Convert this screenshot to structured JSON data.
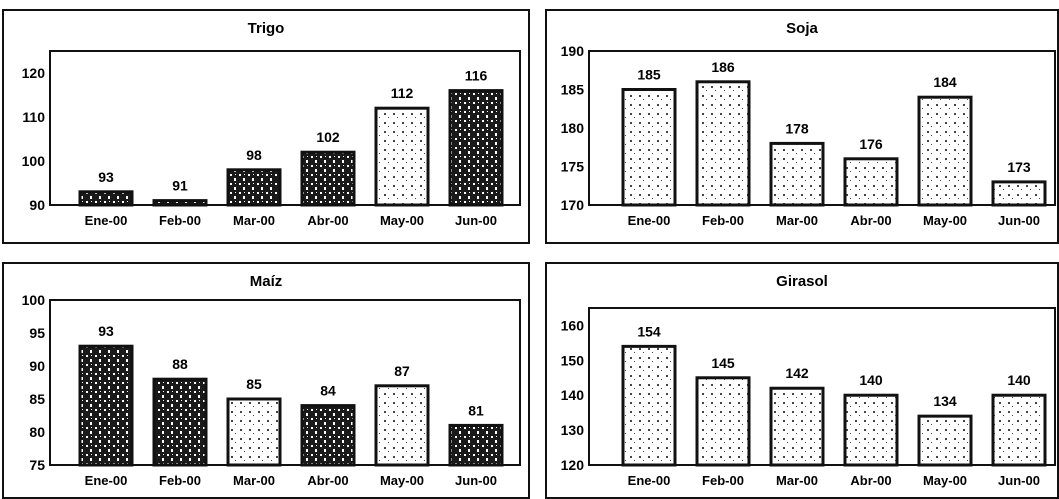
{
  "colors": {
    "frame": "#111111",
    "bar_stroke": "#111111",
    "dark_fill": "#1a1a1a",
    "light_fill": "#ffffff"
  },
  "chart_data": [
    {
      "type": "bar",
      "title": "Trigo",
      "categories": [
        "Ene-00",
        "Feb-00",
        "Mar-00",
        "Abr-00",
        "May-00",
        "Jun-00"
      ],
      "values": [
        93,
        91,
        98,
        102,
        112,
        116
      ],
      "ylim": [
        90,
        125
      ],
      "yticks": [
        "90",
        "100",
        "110",
        "120"
      ],
      "ytick_values": [
        90,
        100,
        110,
        120
      ],
      "xlabel": "",
      "ylabel": "",
      "grid": false,
      "bar_fills": [
        "dark",
        "dark",
        "dark",
        "dark",
        "light",
        "dark"
      ]
    },
    {
      "type": "bar",
      "title": "Soja",
      "categories": [
        "Ene-00",
        "Feb-00",
        "Mar-00",
        "Abr-00",
        "May-00",
        "Jun-00"
      ],
      "values": [
        185,
        186,
        178,
        176,
        184,
        173
      ],
      "ylim": [
        170,
        190
      ],
      "yticks": [
        "170",
        "175",
        "180",
        "185",
        "190"
      ],
      "ytick_values": [
        170,
        175,
        180,
        185,
        190
      ],
      "xlabel": "",
      "ylabel": "",
      "grid": false,
      "bar_fills": [
        "light",
        "light",
        "light",
        "light",
        "light",
        "light"
      ]
    },
    {
      "type": "bar",
      "title": "Maíz",
      "categories": [
        "Ene-00",
        "Feb-00",
        "Mar-00",
        "Abr-00",
        "May-00",
        "Jun-00"
      ],
      "values": [
        93,
        88,
        85,
        84,
        87,
        81
      ],
      "ylim": [
        75,
        100
      ],
      "yticks": [
        "75",
        "80",
        "85",
        "90",
        "95",
        "100"
      ],
      "ytick_values": [
        75,
        80,
        85,
        90,
        95,
        100
      ],
      "xlabel": "",
      "ylabel": "",
      "grid": false,
      "bar_fills": [
        "dark",
        "dark",
        "light",
        "dark",
        "light",
        "dark"
      ]
    },
    {
      "type": "bar",
      "title": "Girasol",
      "categories": [
        "Ene-00",
        "Feb-00",
        "Mar-00",
        "Abr-00",
        "May-00",
        "Jun-00"
      ],
      "values": [
        154,
        145,
        142,
        140,
        134,
        140
      ],
      "ylim": [
        120,
        165
      ],
      "yticks": [
        "120",
        "130",
        "140",
        "150",
        "160"
      ],
      "ytick_values": [
        120,
        130,
        140,
        150,
        160
      ],
      "xlabel": "",
      "ylabel": "",
      "grid": false,
      "bar_fills": [
        "light",
        "light",
        "light",
        "light",
        "light",
        "light"
      ]
    }
  ]
}
